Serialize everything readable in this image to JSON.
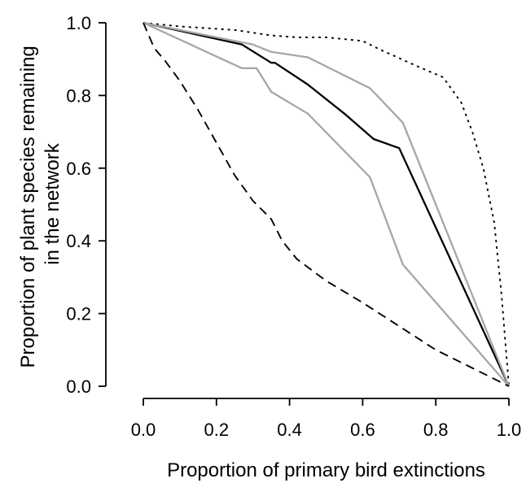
{
  "chart_data": {
    "type": "line",
    "title": "",
    "xlabel": "Proportion of primary bird extinctions",
    "ylabel_lines": [
      "Proportion of plant species remaining",
      "in the network"
    ],
    "xlim": [
      0.0,
      1.0
    ],
    "ylim": [
      0.0,
      1.0
    ],
    "xticks": [
      "0.0",
      "0.2",
      "0.4",
      "0.6",
      "0.8",
      "1.0"
    ],
    "yticks": [
      "0.0",
      "0.2",
      "0.4",
      "0.6",
      "0.8",
      "1.0"
    ],
    "grid": false,
    "legend": "none",
    "series": [
      {
        "style": "dotted",
        "color": "#000000",
        "x": [
          0.0,
          0.1,
          0.25,
          0.35,
          0.42,
          0.5,
          0.6,
          0.65,
          0.75,
          0.82,
          0.87,
          0.9,
          0.93,
          0.96,
          0.98,
          1.0
        ],
        "y": [
          1.0,
          0.99,
          0.98,
          0.965,
          0.96,
          0.96,
          0.95,
          0.925,
          0.88,
          0.85,
          0.78,
          0.7,
          0.6,
          0.45,
          0.25,
          0.0
        ]
      },
      {
        "style": "solid",
        "color": "#000000",
        "x": [
          0.0,
          0.27,
          0.35,
          0.36,
          0.45,
          0.55,
          0.63,
          0.7,
          1.0
        ],
        "y": [
          1.0,
          0.94,
          0.89,
          0.89,
          0.83,
          0.75,
          0.68,
          0.655,
          0.0
        ]
      },
      {
        "style": "solid",
        "color": "#a6a6a6",
        "x": [
          0.0,
          0.3,
          0.35,
          0.45,
          0.62,
          0.71,
          1.0
        ],
        "y": [
          1.0,
          0.94,
          0.92,
          0.905,
          0.82,
          0.725,
          0.0
        ]
      },
      {
        "style": "solid",
        "color": "#a6a6a6",
        "x": [
          0.0,
          0.27,
          0.31,
          0.35,
          0.45,
          0.62,
          0.71,
          1.0
        ],
        "y": [
          1.0,
          0.875,
          0.875,
          0.81,
          0.75,
          0.575,
          0.335,
          0.0
        ]
      },
      {
        "style": "dashed",
        "color": "#000000",
        "x": [
          0.0,
          0.03,
          0.06,
          0.1,
          0.15,
          0.2,
          0.25,
          0.3,
          0.35,
          0.38,
          0.42,
          0.5,
          0.6,
          0.7,
          0.8,
          0.9,
          1.0
        ],
        "y": [
          1.0,
          0.93,
          0.895,
          0.84,
          0.76,
          0.67,
          0.58,
          0.51,
          0.46,
          0.4,
          0.35,
          0.29,
          0.23,
          0.165,
          0.1,
          0.05,
          0.0
        ]
      }
    ]
  }
}
